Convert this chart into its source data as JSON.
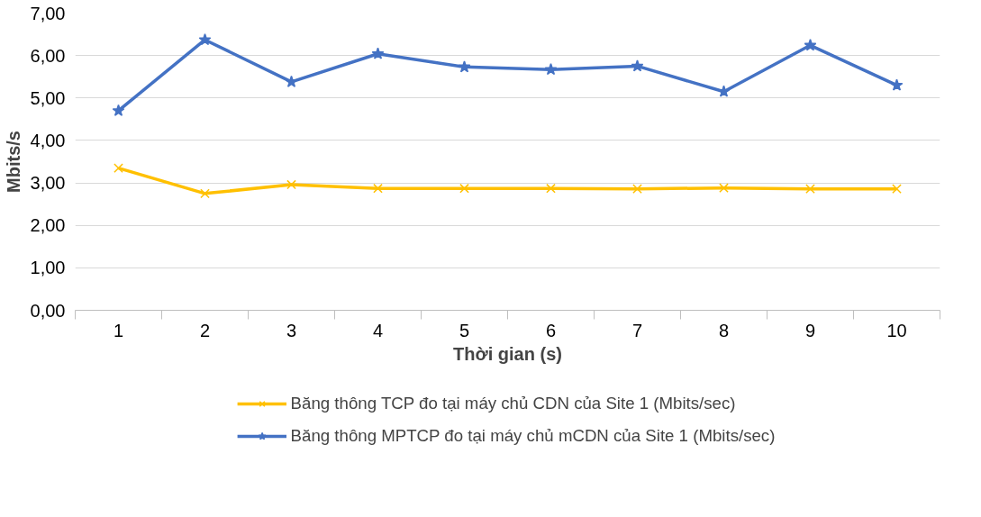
{
  "chart_data": {
    "type": "line",
    "xlabel": "Thời gian (s)",
    "ylabel": "Mbits/s",
    "categories": [
      "1",
      "2",
      "3",
      "4",
      "5",
      "6",
      "7",
      "8",
      "9",
      "10"
    ],
    "series": [
      {
        "name": "Băng thông TCP đo tại máy chủ CDN của Site 1 (Mbits/sec)",
        "color": "#ffc000",
        "marker": "cross",
        "values": [
          3.35,
          2.75,
          2.96,
          2.87,
          2.87,
          2.87,
          2.86,
          2.88,
          2.86,
          2.86
        ]
      },
      {
        "name": "Băng thông MPTCP đo tại máy chủ mCDN của Site 1 (Mbits/sec)",
        "color": "#4472c4",
        "marker": "star",
        "values": [
          4.7,
          6.37,
          5.38,
          6.04,
          5.73,
          5.67,
          5.75,
          5.15,
          6.24,
          5.3
        ]
      }
    ],
    "ylim": [
      0,
      7
    ],
    "yticks": [
      {
        "value": 0,
        "label": "0,00"
      },
      {
        "value": 1,
        "label": "1,00"
      },
      {
        "value": 2,
        "label": "2,00"
      },
      {
        "value": 3,
        "label": "3,00"
      },
      {
        "value": 4,
        "label": "4,00"
      },
      {
        "value": 5,
        "label": "5,00"
      },
      {
        "value": 6,
        "label": "6,00"
      },
      {
        "value": 7,
        "label": "7,00"
      }
    ],
    "grid": "y",
    "legend": "bottom",
    "line_style": "solid"
  }
}
